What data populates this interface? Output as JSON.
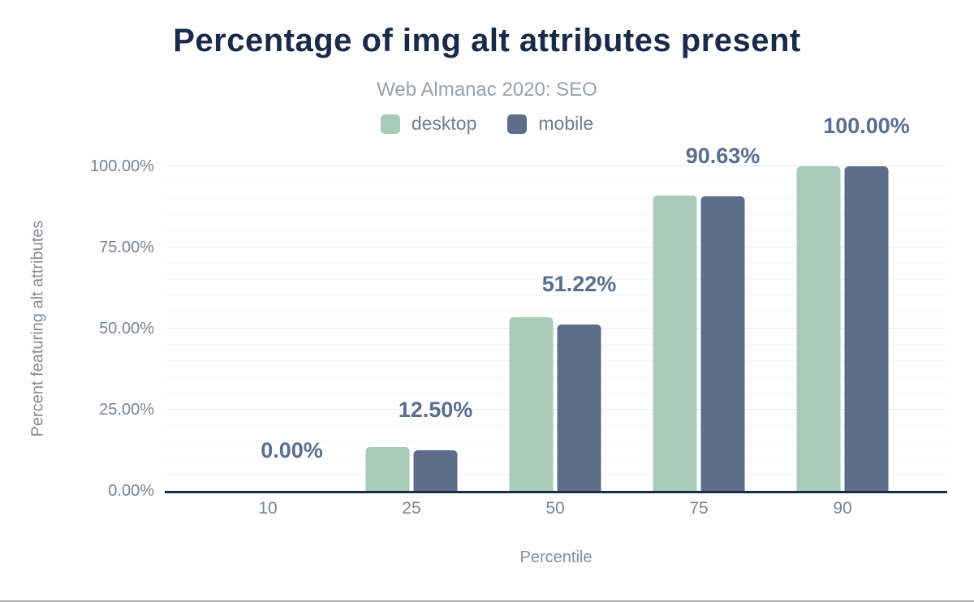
{
  "chart_data": {
    "type": "bar",
    "title": "Percentage of img alt attributes present",
    "subtitle": "Web Almanac 2020: SEO",
    "xlabel": "Percentile",
    "ylabel": "Percent featuring alt attributes",
    "categories": [
      "10",
      "25",
      "50",
      "75",
      "90"
    ],
    "series": [
      {
        "name": "desktop",
        "color": "#a8cbb8",
        "values": [
          0,
          13.5,
          53.4,
          91.0,
          99.9
        ]
      },
      {
        "name": "mobile",
        "color": "#5c6e8a",
        "values": [
          0,
          12.5,
          51.22,
          90.63,
          100.0
        ]
      }
    ],
    "data_labels": [
      "0.00%",
      "12.50%",
      "51.22%",
      "90.63%",
      "100.00%"
    ],
    "data_labels_series": "mobile",
    "y_ticks": [
      "0.00%",
      "25.00%",
      "50.00%",
      "75.00%",
      "100.00%"
    ],
    "ylim": [
      0,
      100
    ],
    "grid": "horizontal; minor lines every 5%, major lines every 25%",
    "legend_position": "top-center",
    "colors": {
      "title": "#1a2b49",
      "subtitle": "#9aa1a9",
      "data_label": "#5b6e8e",
      "axis_line": "#1a2b49",
      "tick_text": "#7d848d"
    }
  }
}
